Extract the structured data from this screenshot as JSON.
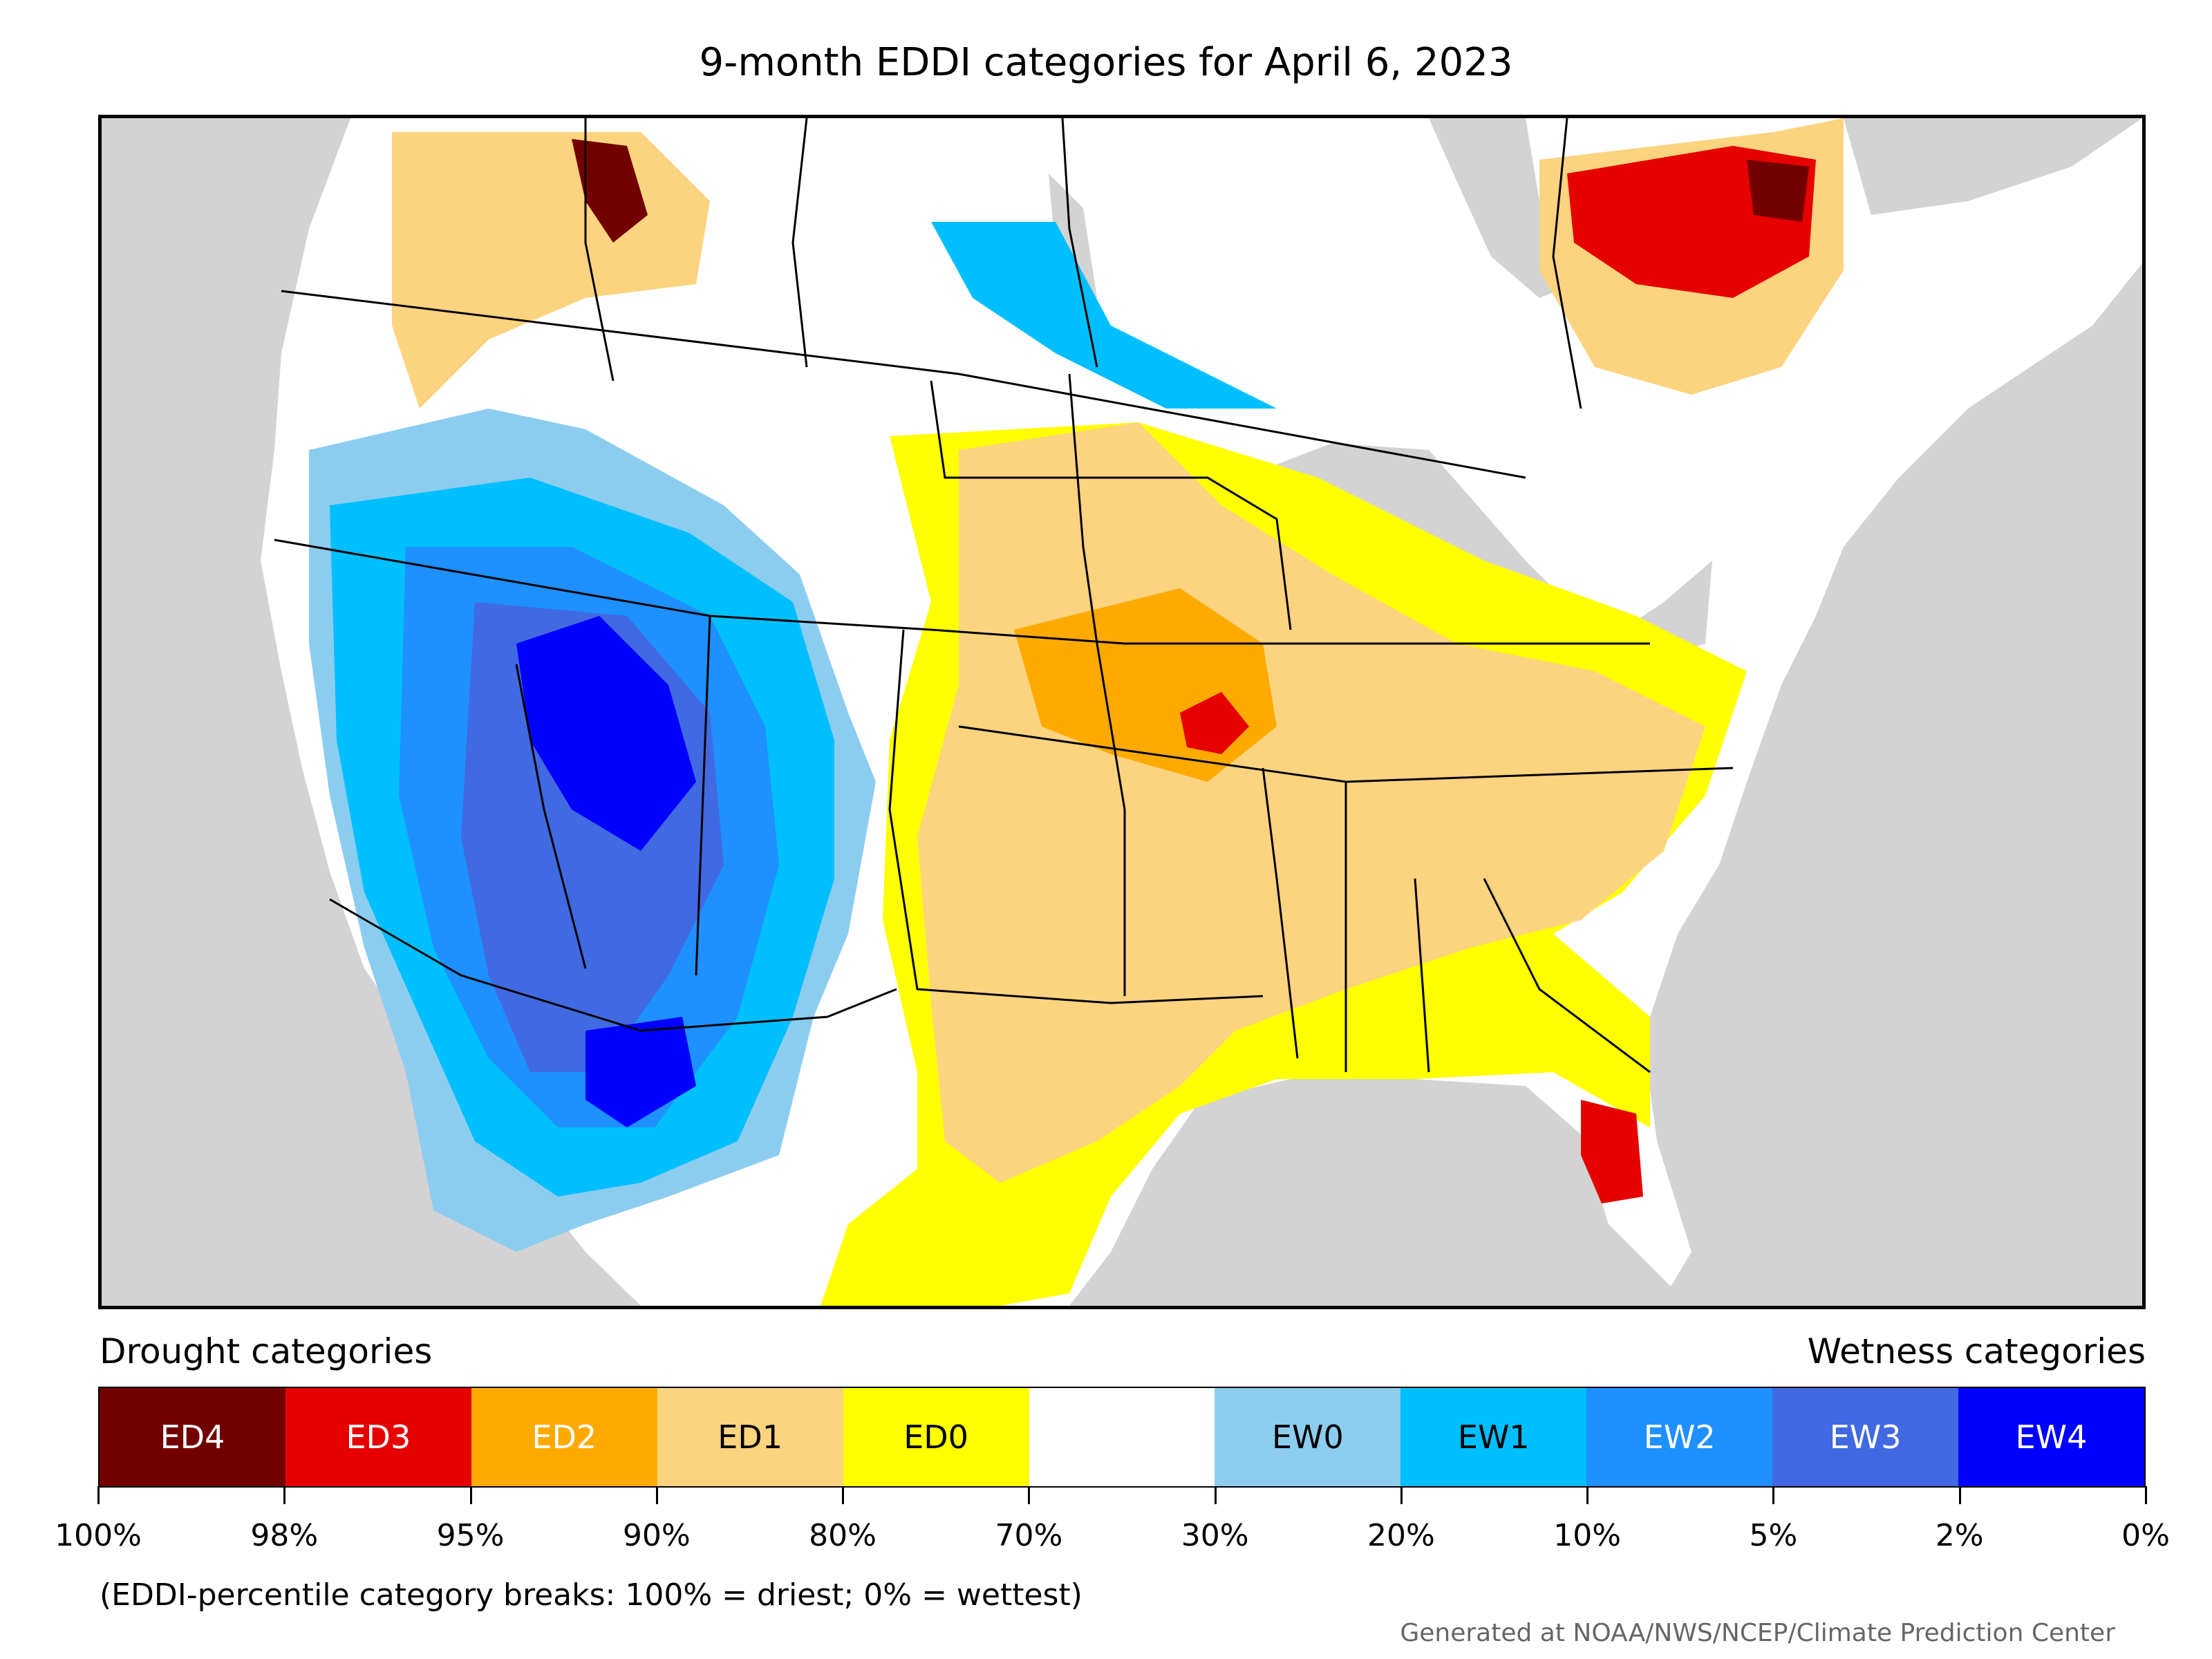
{
  "title": "9-month EDDI categories for April 6, 2023",
  "drought_heading": "Drought categories",
  "wetness_heading": "Wetness categories",
  "categories": [
    {
      "label": "ED4",
      "color": "#730000",
      "text_color": "#ffffff"
    },
    {
      "label": "ED3",
      "color": "#e60000",
      "text_color": "#ffffff"
    },
    {
      "label": "ED2",
      "color": "#ffaa00",
      "text_color": "#ffffff"
    },
    {
      "label": "ED1",
      "color": "#fcd37f",
      "text_color": "#000000"
    },
    {
      "label": "ED0",
      "color": "#ffff00",
      "text_color": "#000000"
    },
    {
      "label": "",
      "color": "#ffffff",
      "text_color": "#000000"
    },
    {
      "label": "EW0",
      "color": "#8ccdef",
      "text_color": "#000000"
    },
    {
      "label": "EW1",
      "color": "#00bfff",
      "text_color": "#000000"
    },
    {
      "label": "EW2",
      "color": "#1e90ff",
      "text_color": "#ffffff"
    },
    {
      "label": "EW3",
      "color": "#4169e1",
      "text_color": "#ffffff"
    },
    {
      "label": "EW4",
      "color": "#0000ff",
      "text_color": "#ffffff"
    }
  ],
  "tick_labels": [
    "100%",
    "98%",
    "95%",
    "90%",
    "80%",
    "70%",
    "30%",
    "20%",
    "10%",
    "5%",
    "2%",
    "0%"
  ],
  "note": "(EDDI-percentile category breaks: 100% = driest; 0% = wettest)",
  "credit": "Generated at NOAA/NWS/NCEP/Climate Prediction Center",
  "map": {
    "land_color": "#ffffff",
    "ocean_color": "#d3d3d3",
    "border_color": "#000000"
  }
}
